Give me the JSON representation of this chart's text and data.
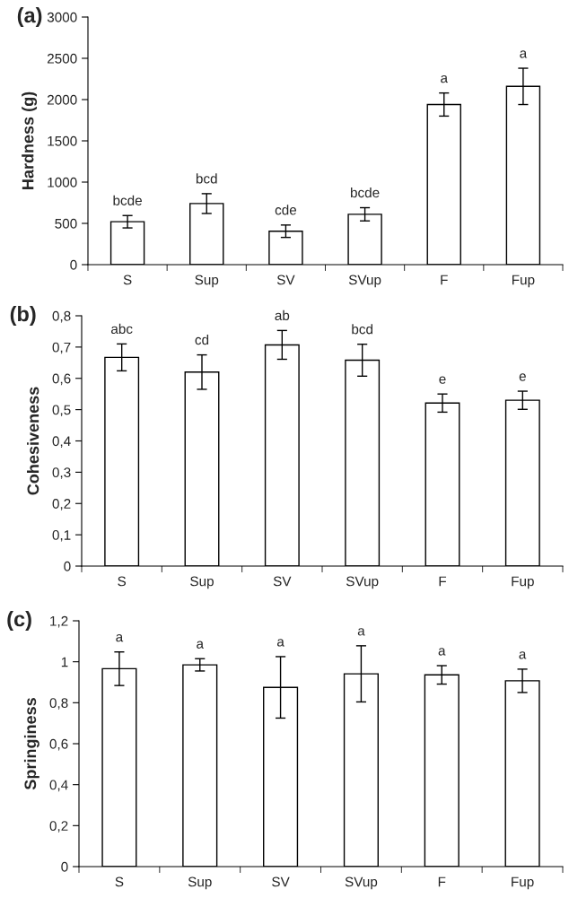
{
  "chart_data": [
    {
      "type": "bar",
      "title": "(a)",
      "ylabel": "Hardness (g)",
      "categories": [
        "S",
        "Sup",
        "SV",
        "SVup",
        "F",
        "Fup"
      ],
      "color": "#ffffff",
      "values": [
        520,
        740,
        405,
        610,
        1940,
        2160
      ],
      "errors": [
        75,
        120,
        75,
        80,
        140,
        220
      ],
      "ylim": [
        0,
        3000
      ],
      "yticks": [
        0,
        500,
        1000,
        1500,
        2000,
        2500,
        3000
      ],
      "annotations": [
        {
          "text": "bcde",
          "x": "S",
          "y": 595
        },
        {
          "text": "bcd",
          "x": "Sup",
          "y": 860
        },
        {
          "text": "cde",
          "x": "SV",
          "y": 480
        },
        {
          "text": "bcde",
          "x": "SVup",
          "y": 690
        },
        {
          "text": "a",
          "x": "F",
          "y": 2080
        },
        {
          "text": "a",
          "x": "Fup",
          "y": 2380
        }
      ]
    },
    {
      "type": "bar",
      "title": "(b)",
      "ylabel": "Cohesiveness",
      "categories": [
        "S",
        "Sup",
        "SV",
        "SVup",
        "F",
        "Fup"
      ],
      "color": "#ffffff",
      "values": [
        0.667,
        0.62,
        0.707,
        0.658,
        0.521,
        0.53
      ],
      "errors": [
        0.043,
        0.055,
        0.046,
        0.051,
        0.029,
        0.029
      ],
      "ylim": [
        0,
        0.8
      ],
      "yticks": [
        0,
        {
          "value": 0.1,
          "label": "0,1"
        },
        {
          "value": 0.2,
          "label": "0,2"
        },
        {
          "value": 0.3,
          "label": "0,3"
        },
        {
          "value": 0.4,
          "label": "0,4"
        },
        {
          "value": 0.5,
          "label": "0,5"
        },
        {
          "value": 0.6,
          "label": "0,6"
        },
        {
          "value": 0.7,
          "label": "0,7"
        },
        {
          "value": 0.8,
          "label": "0,8"
        }
      ],
      "annotations": [
        {
          "text": "abc",
          "x": "S",
          "y": 0.71
        },
        {
          "text": "cd",
          "x": "Sup",
          "y": 0.675
        },
        {
          "text": "ab",
          "x": "SV",
          "y": 0.753
        },
        {
          "text": "bcd",
          "x": "SVup",
          "y": 0.709
        },
        {
          "text": "e",
          "x": "F",
          "y": 0.55
        },
        {
          "text": "e",
          "x": "Fup",
          "y": 0.559
        }
      ]
    },
    {
      "type": "bar",
      "title": "(c)",
      "ylabel": "Springiness",
      "categories": [
        "S",
        "Sup",
        "SV",
        "SVup",
        "F",
        "Fup"
      ],
      "color": "#ffffff",
      "values": [
        0.966,
        0.985,
        0.875,
        0.941,
        0.936,
        0.907
      ],
      "errors": [
        0.082,
        0.03,
        0.15,
        0.137,
        0.045,
        0.057
      ],
      "ylim": [
        0,
        1.2
      ],
      "yticks": [
        0,
        {
          "value": 0.2,
          "label": "0,2"
        },
        {
          "value": 0.4,
          "label": "0,4"
        },
        {
          "value": 0.6,
          "label": "0,6"
        },
        {
          "value": 0.8,
          "label": "0,8"
        },
        1,
        {
          "value": 1.2,
          "label": "1,2"
        }
      ],
      "annotations": [
        {
          "text": "a",
          "x": "S",
          "y": 1.048
        },
        {
          "text": "a",
          "x": "Sup",
          "y": 1.015
        },
        {
          "text": "a",
          "x": "SV",
          "y": 1.025
        },
        {
          "text": "a",
          "x": "SVup",
          "y": 1.078
        },
        {
          "text": "a",
          "x": "F",
          "y": 0.981
        },
        {
          "text": "a",
          "x": "Fup",
          "y": 0.964
        }
      ]
    }
  ]
}
